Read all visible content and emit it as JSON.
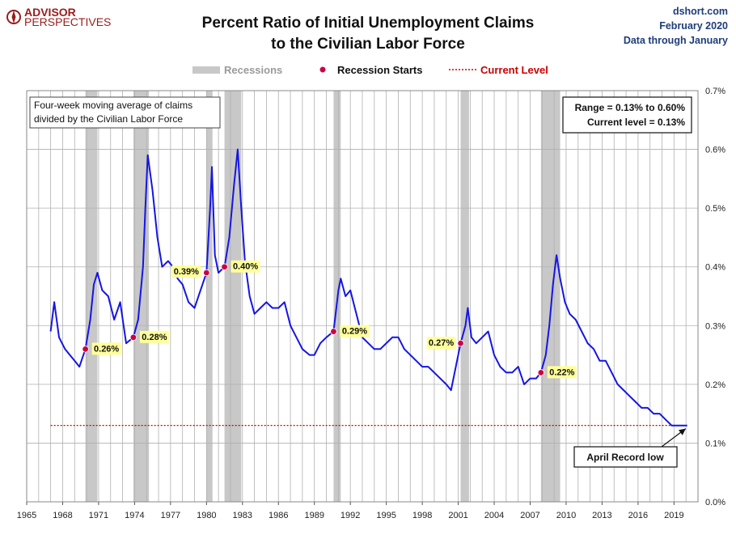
{
  "header": {
    "brand_line1": "ADVISOR",
    "brand_line2": "PERSPECTIVES",
    "title_line1": "Percent Ratio of Initial Unemployment Claims",
    "title_line2": "to the Civilian Labor Force",
    "source": "dshort.com",
    "date": "February 2020",
    "data_through": "Data through January"
  },
  "legend": {
    "recessions": "Recessions",
    "recession_starts": "Recession Starts",
    "current_level": "Current Level"
  },
  "notes": {
    "description_line1": "Four-week moving average of claims",
    "description_line2": "divided by the Civilian Labor Force",
    "range_text": "Range = 0.13% to 0.60%",
    "current_text": "Current level = 0.13%",
    "callout": "April Record low"
  },
  "colors": {
    "series": "#1515e6",
    "recession": "#c8c8c8",
    "marker": "#cc0044",
    "current_level": "#cc0000",
    "label_bg": "#ffff99",
    "grid": "#b0b0b0"
  },
  "chart_data": {
    "type": "line",
    "title": "Percent Ratio of Initial Unemployment Claims to the Civilian Labor Force",
    "xlim": [
      1965,
      2021
    ],
    "ylim": [
      0,
      0.7
    ],
    "x_ticks": [
      "1965",
      "1968",
      "1971",
      "1974",
      "1977",
      "1980",
      "1983",
      "1986",
      "1989",
      "1992",
      "1995",
      "1998",
      "2001",
      "2004",
      "2007",
      "2010",
      "2013",
      "2016",
      "2019"
    ],
    "y_ticks": [
      "0.0%",
      "0.1%",
      "0.2%",
      "0.3%",
      "0.4%",
      "0.5%",
      "0.6%",
      "0.7%"
    ],
    "grid": true,
    "legend_position": "top",
    "current_level": 0.13,
    "recessions": [
      [
        1969.9,
        1970.9
      ],
      [
        1973.9,
        1975.2
      ],
      [
        1980.0,
        1980.5
      ],
      [
        1981.5,
        1982.9
      ],
      [
        1990.6,
        1991.2
      ],
      [
        2001.2,
        2001.9
      ],
      [
        2007.9,
        2009.5
      ]
    ],
    "recession_starts": [
      {
        "x": 1969.9,
        "y": 0.26,
        "label": "0.26%"
      },
      {
        "x": 1973.9,
        "y": 0.28,
        "label": "0.28%"
      },
      {
        "x": 1980.0,
        "y": 0.39,
        "label": "0.39%"
      },
      {
        "x": 1981.5,
        "y": 0.4,
        "label": "0.40%"
      },
      {
        "x": 1990.6,
        "y": 0.29,
        "label": "0.29%"
      },
      {
        "x": 2001.2,
        "y": 0.27,
        "label": "0.27%"
      },
      {
        "x": 2007.9,
        "y": 0.22,
        "label": "0.22%"
      }
    ],
    "series": [
      {
        "points": [
          [
            1967.0,
            0.29
          ],
          [
            1967.3,
            0.34
          ],
          [
            1967.7,
            0.28
          ],
          [
            1968.2,
            0.26
          ],
          [
            1968.6,
            0.25
          ],
          [
            1969.0,
            0.24
          ],
          [
            1969.4,
            0.23
          ],
          [
            1969.9,
            0.26
          ],
          [
            1970.3,
            0.31
          ],
          [
            1970.6,
            0.37
          ],
          [
            1970.9,
            0.39
          ],
          [
            1971.3,
            0.36
          ],
          [
            1971.8,
            0.35
          ],
          [
            1972.3,
            0.31
          ],
          [
            1972.8,
            0.34
          ],
          [
            1973.3,
            0.27
          ],
          [
            1973.9,
            0.28
          ],
          [
            1974.3,
            0.31
          ],
          [
            1974.7,
            0.4
          ],
          [
            1974.9,
            0.5
          ],
          [
            1975.1,
            0.59
          ],
          [
            1975.5,
            0.53
          ],
          [
            1975.9,
            0.45
          ],
          [
            1976.3,
            0.4
          ],
          [
            1976.8,
            0.41
          ],
          [
            1977.2,
            0.4
          ],
          [
            1977.6,
            0.38
          ],
          [
            1978.0,
            0.37
          ],
          [
            1978.5,
            0.34
          ],
          [
            1979.0,
            0.33
          ],
          [
            1979.5,
            0.36
          ],
          [
            1980.0,
            0.39
          ],
          [
            1980.3,
            0.5
          ],
          [
            1980.45,
            0.57
          ],
          [
            1980.7,
            0.42
          ],
          [
            1981.0,
            0.39
          ],
          [
            1981.5,
            0.4
          ],
          [
            1981.9,
            0.45
          ],
          [
            1982.3,
            0.54
          ],
          [
            1982.6,
            0.6
          ],
          [
            1982.9,
            0.5
          ],
          [
            1983.2,
            0.41
          ],
          [
            1983.6,
            0.35
          ],
          [
            1984.0,
            0.32
          ],
          [
            1984.5,
            0.33
          ],
          [
            1985.0,
            0.34
          ],
          [
            1985.5,
            0.33
          ],
          [
            1986.0,
            0.33
          ],
          [
            1986.5,
            0.34
          ],
          [
            1987.0,
            0.3
          ],
          [
            1987.5,
            0.28
          ],
          [
            1988.0,
            0.26
          ],
          [
            1988.6,
            0.25
          ],
          [
            1989.0,
            0.25
          ],
          [
            1989.5,
            0.27
          ],
          [
            1990.0,
            0.28
          ],
          [
            1990.6,
            0.29
          ],
          [
            1991.0,
            0.36
          ],
          [
            1991.2,
            0.38
          ],
          [
            1991.6,
            0.35
          ],
          [
            1992.0,
            0.36
          ],
          [
            1992.5,
            0.32
          ],
          [
            1993.0,
            0.28
          ],
          [
            1993.5,
            0.27
          ],
          [
            1994.0,
            0.26
          ],
          [
            1994.5,
            0.26
          ],
          [
            1995.0,
            0.27
          ],
          [
            1995.5,
            0.28
          ],
          [
            1996.0,
            0.28
          ],
          [
            1996.5,
            0.26
          ],
          [
            1997.0,
            0.25
          ],
          [
            1997.5,
            0.24
          ],
          [
            1998.0,
            0.23
          ],
          [
            1998.5,
            0.23
          ],
          [
            1999.0,
            0.22
          ],
          [
            1999.5,
            0.21
          ],
          [
            2000.0,
            0.2
          ],
          [
            2000.4,
            0.19
          ],
          [
            2000.8,
            0.23
          ],
          [
            2001.2,
            0.27
          ],
          [
            2001.6,
            0.3
          ],
          [
            2001.8,
            0.33
          ],
          [
            2002.1,
            0.28
          ],
          [
            2002.5,
            0.27
          ],
          [
            2003.0,
            0.28
          ],
          [
            2003.5,
            0.29
          ],
          [
            2004.0,
            0.25
          ],
          [
            2004.5,
            0.23
          ],
          [
            2005.0,
            0.22
          ],
          [
            2005.5,
            0.22
          ],
          [
            2006.0,
            0.23
          ],
          [
            2006.5,
            0.2
          ],
          [
            2007.0,
            0.21
          ],
          [
            2007.5,
            0.21
          ],
          [
            2007.9,
            0.22
          ],
          [
            2008.3,
            0.25
          ],
          [
            2008.6,
            0.3
          ],
          [
            2008.9,
            0.37
          ],
          [
            2009.2,
            0.42
          ],
          [
            2009.5,
            0.38
          ],
          [
            2009.9,
            0.34
          ],
          [
            2010.3,
            0.32
          ],
          [
            2010.8,
            0.31
          ],
          [
            2011.3,
            0.29
          ],
          [
            2011.8,
            0.27
          ],
          [
            2012.3,
            0.26
          ],
          [
            2012.8,
            0.24
          ],
          [
            2013.3,
            0.24
          ],
          [
            2013.8,
            0.22
          ],
          [
            2014.3,
            0.2
          ],
          [
            2014.8,
            0.19
          ],
          [
            2015.3,
            0.18
          ],
          [
            2015.8,
            0.17
          ],
          [
            2016.3,
            0.16
          ],
          [
            2016.8,
            0.16
          ],
          [
            2017.3,
            0.15
          ],
          [
            2017.8,
            0.15
          ],
          [
            2018.3,
            0.14
          ],
          [
            2018.8,
            0.13
          ],
          [
            2019.3,
            0.13
          ],
          [
            2019.7,
            0.13
          ],
          [
            2020.1,
            0.13
          ]
        ]
      }
    ],
    "callout_point": [
      2019.3,
      0.13
    ]
  }
}
